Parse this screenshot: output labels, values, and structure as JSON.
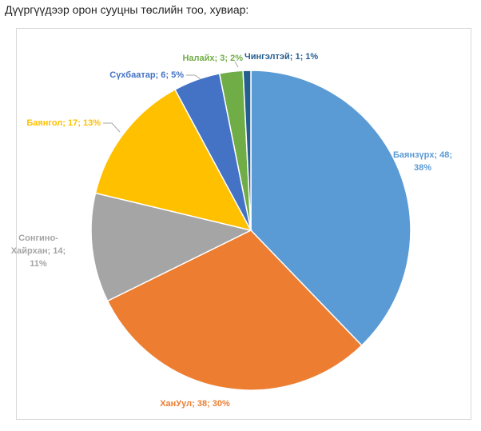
{
  "page": {
    "title": "Дүүргүүдээр орон сууцны төслийн тоо, хувиар:"
  },
  "chart_data": {
    "type": "pie",
    "title": "",
    "start_angle_deg": 0,
    "direction": "clockwise",
    "slices": [
      {
        "name": "Баянзүрх",
        "value": 48,
        "percent": "38%",
        "color": "#5B9BD5",
        "label_lines": [
          "Баянзүрх; 48;",
          "38%"
        ]
      },
      {
        "name": "ХанУул",
        "value": 38,
        "percent": "30%",
        "color": "#ED7D31",
        "label_lines": [
          "ХанУул; 38; 30%"
        ]
      },
      {
        "name": "Сонгино-Хайрхан",
        "value": 14,
        "percent": "11%",
        "color": "#A5A5A5",
        "label_lines": [
          "Сонгино-",
          "Хайрхан; 14;",
          "11%"
        ]
      },
      {
        "name": "Баянгол",
        "value": 17,
        "percent": "13%",
        "color": "#FFC000",
        "label_lines": [
          "Баянгол; 17; 13%"
        ]
      },
      {
        "name": "Сүхбаатар",
        "value": 6,
        "percent": "5%",
        "color": "#4472C4",
        "label_lines": [
          "Сүхбаатар; 6; 5%"
        ]
      },
      {
        "name": "Налайх",
        "value": 3,
        "percent": "2%",
        "color": "#70AD47",
        "label_lines": [
          "Налайх; 3; 2%"
        ]
      },
      {
        "name": "Чингэлтэй",
        "value": 1,
        "percent": "1%",
        "color": "#255E91",
        "label_lines": [
          "Чингэлтэй; 1; 1%"
        ]
      }
    ]
  }
}
